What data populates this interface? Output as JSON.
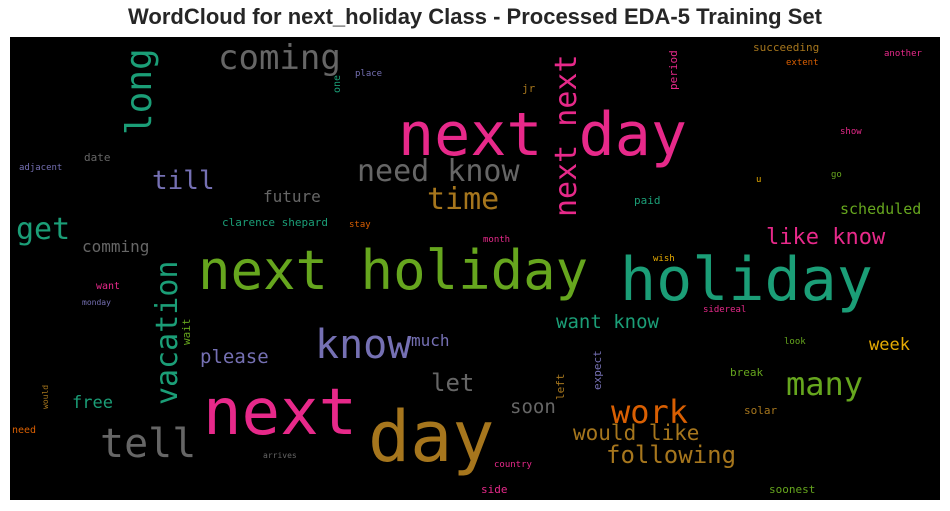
{
  "title": "WordCloud for next_holiday Class - Processed EDA-5 Training Set",
  "chart_data": {
    "type": "wordcloud",
    "background": "#000000",
    "words": [
      {
        "text": "next day",
        "color": "#e7298a"
      },
      {
        "text": "next holiday",
        "color": "#66a61e"
      },
      {
        "text": "holiday",
        "color": "#1b9e77"
      },
      {
        "text": "next",
        "color": "#e7298a"
      },
      {
        "text": "day",
        "color": "#a6761d"
      },
      {
        "text": "tell",
        "color": "#666666"
      },
      {
        "text": "know",
        "color": "#7570b3"
      },
      {
        "text": "next next",
        "color": "#e7298a"
      },
      {
        "text": "vacation",
        "color": "#1b9e77"
      },
      {
        "text": "long",
        "color": "#1b9e77"
      },
      {
        "text": "coming",
        "color": "#666666"
      },
      {
        "text": "need know",
        "color": "#666666"
      },
      {
        "text": "many",
        "color": "#66a61e"
      },
      {
        "text": "work",
        "color": "#d95f02"
      },
      {
        "text": "time",
        "color": "#a6761d"
      },
      {
        "text": "get",
        "color": "#1b9e77"
      },
      {
        "text": "following",
        "color": "#a6761d"
      },
      {
        "text": "till",
        "color": "#7570b3"
      },
      {
        "text": "like know",
        "color": "#e7298a"
      },
      {
        "text": "would like",
        "color": "#a6761d"
      },
      {
        "text": "let",
        "color": "#666666"
      },
      {
        "text": "want know",
        "color": "#1b9e77"
      },
      {
        "text": "please",
        "color": "#7570b3"
      },
      {
        "text": "soon",
        "color": "#666666"
      },
      {
        "text": "future",
        "color": "#666666"
      },
      {
        "text": "comming",
        "color": "#666666"
      },
      {
        "text": "scheduled",
        "color": "#66a61e"
      },
      {
        "text": "week",
        "color": "#e6ab02"
      },
      {
        "text": "free",
        "color": "#1b9e77"
      },
      {
        "text": "much",
        "color": "#7570b3"
      },
      {
        "text": "clarence shepard",
        "color": "#1b9e77"
      },
      {
        "text": "succeeding",
        "color": "#a6761d"
      },
      {
        "text": "period",
        "color": "#e7298a"
      },
      {
        "text": "wait",
        "color": "#66a61e"
      },
      {
        "text": "expect",
        "color": "#7570b3"
      },
      {
        "text": "left",
        "color": "#a6761d"
      },
      {
        "text": "break",
        "color": "#66a61e"
      },
      {
        "text": "solar",
        "color": "#a6761d"
      },
      {
        "text": "soonest",
        "color": "#66a61e"
      },
      {
        "text": "date",
        "color": "#666666"
      },
      {
        "text": "one",
        "color": "#1b9e77"
      },
      {
        "text": "place",
        "color": "#7570b3"
      },
      {
        "text": "jr",
        "color": "#a6761d"
      },
      {
        "text": "extent",
        "color": "#d95f02"
      },
      {
        "text": "another",
        "color": "#e7298a"
      },
      {
        "text": "show",
        "color": "#e7298a"
      },
      {
        "text": "adjacent",
        "color": "#7570b3"
      },
      {
        "text": "u",
        "color": "#e6ab02"
      },
      {
        "text": "go",
        "color": "#66a61e"
      },
      {
        "text": "paid",
        "color": "#1b9e77"
      },
      {
        "text": "stay",
        "color": "#d95f02"
      },
      {
        "text": "month",
        "color": "#e7298a"
      },
      {
        "text": "want",
        "color": "#e7298a"
      },
      {
        "text": "monday",
        "color": "#7570b3"
      },
      {
        "text": "wish",
        "color": "#e6ab02"
      },
      {
        "text": "sidereal",
        "color": "#e7298a"
      },
      {
        "text": "look",
        "color": "#66a61e"
      },
      {
        "text": "would",
        "color": "#a6761d"
      },
      {
        "text": "need",
        "color": "#d95f02"
      },
      {
        "text": "arrives",
        "color": "#666666"
      },
      {
        "text": "country",
        "color": "#e7298a"
      },
      {
        "text": "side",
        "color": "#e7298a"
      }
    ]
  }
}
